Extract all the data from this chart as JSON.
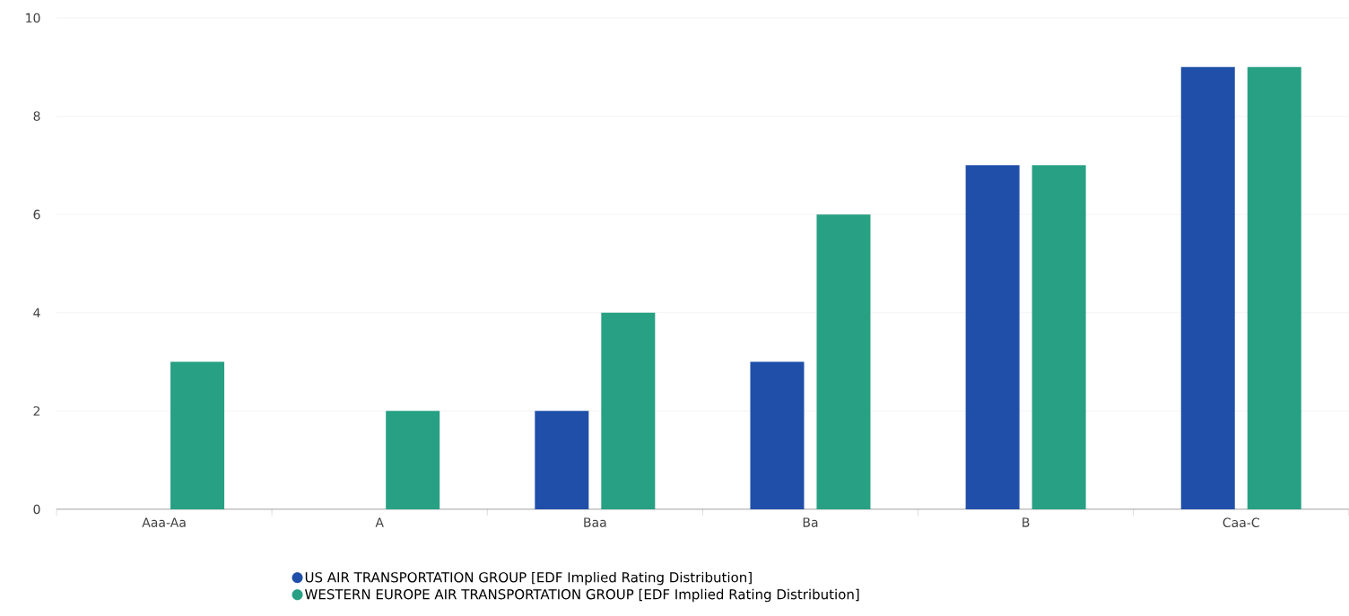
{
  "chart_data": {
    "type": "bar",
    "categories": [
      "Aaa-Aa",
      "A",
      "Baa",
      "Ba",
      "B",
      "Caa-C"
    ],
    "series": [
      {
        "name": "US AIR TRANSPORTATION GROUP [EDF Implied Rating Distribution]",
        "color": "#1f4fa8",
        "values": [
          0,
          0,
          2,
          3,
          7,
          9
        ]
      },
      {
        "name": "WESTERN EUROPE AIR TRANSPORTATION GROUP [EDF Implied Rating Distribution]",
        "color": "#27a083",
        "values": [
          3,
          2,
          4,
          6,
          7,
          9
        ]
      }
    ],
    "ylim": [
      0,
      10
    ],
    "yticks": [
      0,
      2,
      4,
      6,
      8,
      10
    ],
    "grid": "y",
    "legend": "bottom"
  }
}
